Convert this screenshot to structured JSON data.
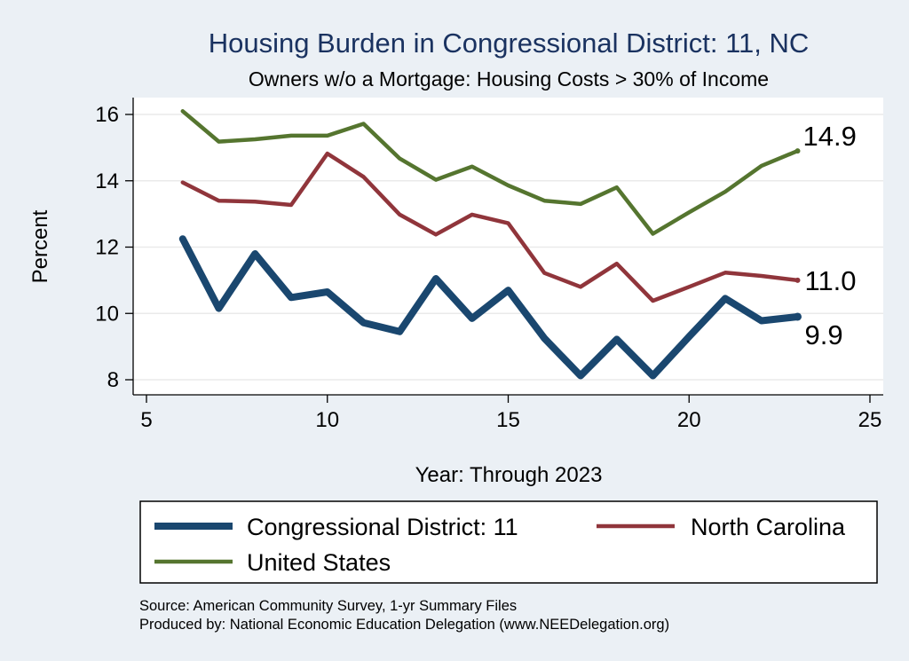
{
  "chart_data": {
    "type": "line",
    "title": "Housing Burden in Congressional District:  11, NC",
    "subtitle": "Owners w/o a Mortgage: Housing Costs > 30% of Income",
    "xlabel": "Year: Through 2023",
    "ylabel": "Percent",
    "xlim": [
      5,
      25
    ],
    "ylim": [
      7.8,
      16.2
    ],
    "xticks": [
      5,
      10,
      15,
      20,
      25
    ],
    "yticks": [
      8,
      10,
      12,
      14,
      16
    ],
    "grid": true,
    "x": [
      6,
      7,
      8,
      9,
      10,
      11,
      12,
      13,
      14,
      15,
      16,
      17,
      18,
      19,
      20,
      21,
      22,
      23
    ],
    "series": [
      {
        "name": "Congressional District:  11",
        "color": "#1a476f",
        "values": [
          12.25,
          10.15,
          11.8,
          10.48,
          10.65,
          9.72,
          9.45,
          11.05,
          9.85,
          10.7,
          9.25,
          8.12,
          9.22,
          8.12,
          9.3,
          10.45,
          9.78,
          9.9
        ],
        "end_label": "9.9"
      },
      {
        "name": "North Carolina",
        "color": "#90353b",
        "values": [
          13.95,
          13.4,
          13.37,
          13.27,
          14.82,
          14.12,
          12.98,
          12.38,
          12.98,
          12.72,
          11.22,
          10.8,
          11.5,
          10.38,
          10.8,
          11.23,
          11.13,
          11.0
        ],
        "end_label": "11.0"
      },
      {
        "name": "United States",
        "color": "#55752f",
        "values": [
          16.1,
          15.18,
          15.25,
          15.36,
          15.36,
          15.72,
          14.67,
          14.03,
          14.43,
          13.86,
          13.4,
          13.3,
          13.8,
          12.4,
          13.05,
          13.67,
          14.45,
          14.9
        ],
        "end_label": "14.9"
      }
    ],
    "legend": {
      "placement": "bottom",
      "entries": [
        "Congressional District:  11",
        "North Carolina",
        "United States"
      ]
    },
    "source_lines": [
      "Source: American Community Survey, 1-yr Summary Files",
      "Produced by: National Economic Education Delegation (www.NEEDelegation.org)"
    ]
  }
}
